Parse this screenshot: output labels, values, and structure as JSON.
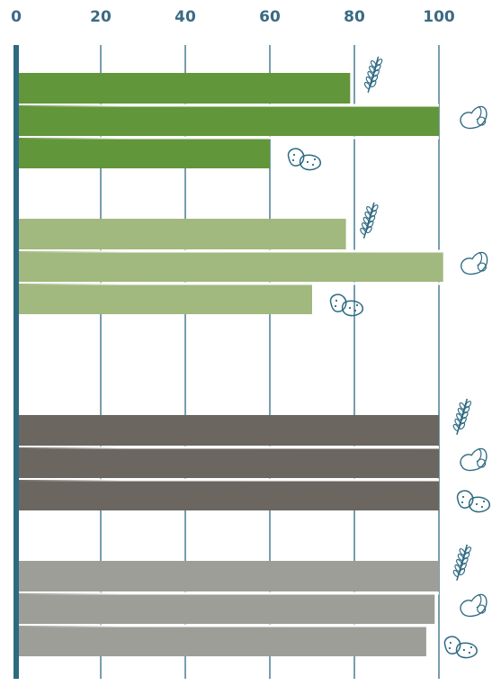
{
  "chart_data": {
    "type": "bar",
    "orientation": "horizontal",
    "x_ticks": [
      "0",
      "20",
      "40",
      "60",
      "80",
      "100"
    ],
    "xlim": [
      0,
      100
    ],
    "grid": true,
    "colors": {
      "axis": "#2e6a82",
      "grid": "#2e6a82",
      "tick_text": "#3b6a84",
      "icon": "#2e6a82"
    },
    "groups": [
      {
        "color": "#62963a",
        "bars": [
          {
            "crop": "wheat",
            "icon": "wheat-icon",
            "value": 79
          },
          {
            "crop": "soybean",
            "icon": "soybean-icon",
            "value": 100
          },
          {
            "crop": "potato",
            "icon": "potato-icon",
            "value": 60
          }
        ]
      },
      {
        "color": "#a1b87e",
        "bars": [
          {
            "crop": "wheat",
            "icon": "wheat-icon",
            "value": 78
          },
          {
            "crop": "soybean",
            "icon": "soybean-icon",
            "value": 101
          },
          {
            "crop": "potato",
            "icon": "potato-icon",
            "value": 70
          }
        ]
      },
      {
        "color": "#6b6760",
        "bars": [
          {
            "crop": "wheat",
            "icon": "wheat-icon",
            "value": 100
          },
          {
            "crop": "soybean",
            "icon": "soybean-icon",
            "value": 100
          },
          {
            "crop": "potato",
            "icon": "potato-icon",
            "value": 100
          }
        ]
      },
      {
        "color": "#9e9e99",
        "bars": [
          {
            "crop": "wheat",
            "icon": "wheat-icon",
            "value": 100
          },
          {
            "crop": "soybean",
            "icon": "soybean-icon",
            "value": 99
          },
          {
            "crop": "potato",
            "icon": "potato-icon",
            "value": 97
          }
        ]
      }
    ]
  }
}
